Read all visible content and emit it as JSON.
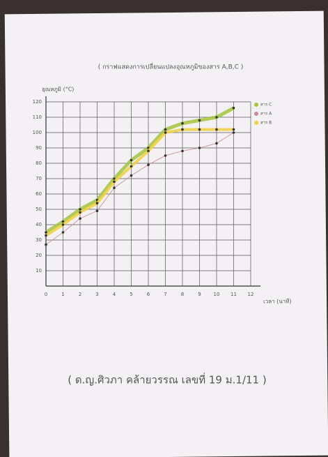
{
  "chart_data": {
    "type": "line",
    "title": "( กราฟแสดงการเปลี่ยนแปลงอุณหภูมิของสาร A,B,C )",
    "y_label": "อุณหภูมิ (°C)",
    "x_label": "เวลา (นาที)",
    "footer": "( ด.ญ.ศิวภา คล้ายวรรณ เลขที่ 19 ม.1/11 )",
    "x": [
      0,
      1,
      2,
      3,
      4,
      5,
      6,
      7,
      8,
      9,
      10,
      11
    ],
    "series": [
      {
        "name": "สาร C",
        "color": "#a4c639",
        "values": [
          35,
          42,
          50,
          56,
          70,
          82,
          90,
          102,
          106,
          108,
          110,
          116
        ]
      },
      {
        "name": "สาร A",
        "color": "#c98a9a",
        "values": [
          27,
          35,
          44,
          49,
          64,
          72,
          79,
          85,
          88,
          90,
          93,
          100
        ]
      },
      {
        "name": "สาร B",
        "color": "#f0d040",
        "values": [
          33,
          40,
          48,
          54,
          68,
          78,
          88,
          100,
          102,
          102,
          102,
          102
        ]
      }
    ],
    "xlim": [
      0,
      12
    ],
    "xticks": [
      0,
      1,
      2,
      3,
      4,
      5,
      6,
      7,
      8,
      9,
      10,
      11,
      12
    ],
    "ylim": [
      0,
      120
    ],
    "yticks": [
      10,
      20,
      30,
      40,
      50,
      60,
      70,
      80,
      90,
      100,
      110,
      120
    ],
    "grid": true,
    "legend": "top-right"
  }
}
